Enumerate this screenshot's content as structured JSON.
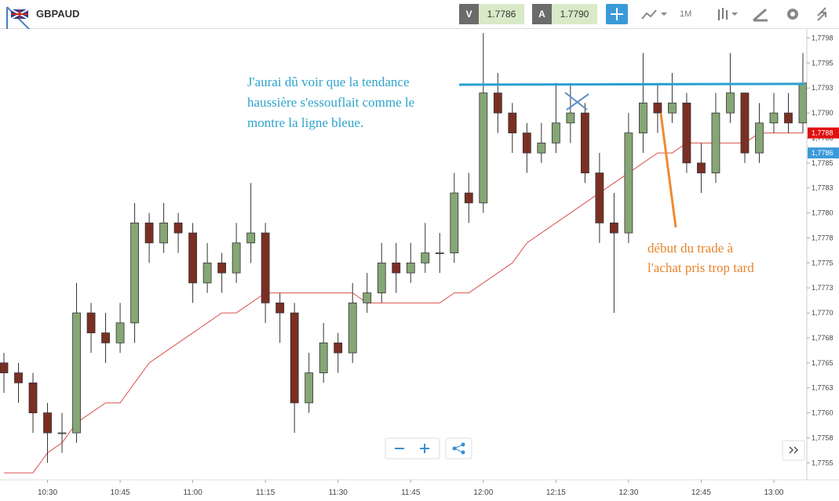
{
  "header": {
    "symbol": "GBPAUD",
    "bid_label": "V",
    "bid": "1.7786",
    "ask_label": "A",
    "ask": "1.7790",
    "timeframe": "1M"
  },
  "chart_data": {
    "type": "candlestick",
    "x": [
      "10:21",
      "10:24",
      "10:27",
      "10:30",
      "10:33",
      "10:36",
      "10:39",
      "10:42",
      "10:45",
      "10:48",
      "10:51",
      "10:54",
      "10:57",
      "11:00",
      "11:03",
      "11:06",
      "11:09",
      "11:12",
      "11:15",
      "11:18",
      "11:21",
      "11:24",
      "11:27",
      "11:30",
      "11:33",
      "11:36",
      "11:39",
      "11:42",
      "11:45",
      "11:48",
      "11:51",
      "11:54",
      "11:57",
      "12:00",
      "12:03",
      "12:06",
      "12:09",
      "12:12",
      "12:15",
      "12:18",
      "12:21",
      "12:24",
      "12:27",
      "12:30",
      "12:33",
      "12:36",
      "12:39",
      "12:42",
      "12:45",
      "12:48",
      "12:51",
      "12:54",
      "12:57",
      "13:00",
      "13:03",
      "13:06"
    ],
    "open": [
      1.7765,
      1.7764,
      1.7763,
      1.776,
      1.7758,
      1.7758,
      1.777,
      1.7768,
      1.7767,
      1.7769,
      1.7779,
      1.7777,
      1.7779,
      1.7778,
      1.7773,
      1.7775,
      1.7774,
      1.7777,
      1.7778,
      1.7771,
      1.777,
      1.7761,
      1.7764,
      1.7767,
      1.7766,
      1.7771,
      1.7772,
      1.7775,
      1.7774,
      1.7775,
      1.7776,
      1.7776,
      1.7782,
      1.7781,
      1.7792,
      1.779,
      1.7788,
      1.7786,
      1.7787,
      1.7789,
      1.779,
      1.7784,
      1.7779,
      1.7778,
      1.7788,
      1.7791,
      1.779,
      1.7791,
      1.7785,
      1.7784,
      1.779,
      1.7792,
      1.7786,
      1.7789,
      1.779,
      1.7789
    ],
    "high": [
      1.7766,
      1.7765,
      1.7764,
      1.7761,
      1.776,
      1.7773,
      1.7771,
      1.777,
      1.7771,
      1.7781,
      1.778,
      1.7781,
      1.778,
      1.7779,
      1.7777,
      1.7776,
      1.7779,
      1.7783,
      1.7779,
      1.7772,
      1.7771,
      1.7766,
      1.7769,
      1.7768,
      1.7773,
      1.7774,
      1.7777,
      1.7777,
      1.7777,
      1.7779,
      1.7778,
      1.7784,
      1.7784,
      1.7798,
      1.7794,
      1.7791,
      1.7789,
      1.7789,
      1.7793,
      1.7793,
      1.7791,
      1.7786,
      1.7782,
      1.779,
      1.7796,
      1.7793,
      1.7794,
      1.7792,
      1.7787,
      1.7792,
      1.7796,
      1.7792,
      1.7791,
      1.7792,
      1.7792,
      1.7796
    ],
    "low": [
      1.7762,
      1.7761,
      1.7758,
      1.7755,
      1.7756,
      1.7757,
      1.7766,
      1.7765,
      1.7766,
      1.7767,
      1.7775,
      1.7776,
      1.7776,
      1.7771,
      1.7772,
      1.7772,
      1.7773,
      1.7775,
      1.7769,
      1.7767,
      1.7758,
      1.776,
      1.7763,
      1.7764,
      1.7765,
      1.777,
      1.7771,
      1.7772,
      1.7773,
      1.7774,
      1.7774,
      1.7775,
      1.7779,
      1.778,
      1.7788,
      1.7786,
      1.7784,
      1.7785,
      1.7786,
      1.7787,
      1.7783,
      1.7777,
      1.777,
      1.7777,
      1.7786,
      1.7788,
      1.7789,
      1.7784,
      1.7782,
      1.7783,
      1.7789,
      1.7785,
      1.7785,
      1.7788,
      1.7788,
      1.7788
    ],
    "close": [
      1.7764,
      1.7763,
      1.776,
      1.7758,
      1.7758,
      1.777,
      1.7768,
      1.7767,
      1.7769,
      1.7779,
      1.7777,
      1.7779,
      1.7778,
      1.7773,
      1.7775,
      1.7774,
      1.7777,
      1.7778,
      1.7771,
      1.777,
      1.7761,
      1.7764,
      1.7767,
      1.7766,
      1.7771,
      1.7772,
      1.7775,
      1.7774,
      1.7775,
      1.7776,
      1.7776,
      1.7782,
      1.7781,
      1.7792,
      1.779,
      1.7788,
      1.7786,
      1.7787,
      1.7789,
      1.779,
      1.7784,
      1.7779,
      1.7778,
      1.7788,
      1.7791,
      1.779,
      1.7791,
      1.7785,
      1.7784,
      1.779,
      1.7792,
      1.7786,
      1.7789,
      1.779,
      1.7789,
      1.7793
    ],
    "up_color": "#86a676",
    "down_color": "#7b2f24",
    "overlays": [
      {
        "color": "#d9534f",
        "values": [
          1.7754,
          1.7754,
          1.7754,
          1.7756,
          1.7757,
          1.7759,
          1.776,
          1.7761,
          1.7761,
          1.7763,
          1.7765,
          1.7766,
          1.7767,
          1.7768,
          1.7769,
          1.777,
          1.777,
          1.7771,
          1.7772,
          1.7772,
          1.7772,
          1.7772,
          1.7772,
          1.7772,
          1.7772,
          1.7771,
          1.7771,
          1.7771,
          1.7771,
          1.7771,
          1.7771,
          1.7772,
          1.7772,
          1.7773,
          1.7774,
          1.7775,
          1.7777,
          1.7778,
          1.7779,
          1.778,
          1.7781,
          1.7782,
          1.7783,
          1.7784,
          1.7785,
          1.7786,
          1.7786,
          1.7787,
          1.7787,
          1.7787,
          1.7787,
          1.7787,
          1.7788,
          1.7788,
          1.7788,
          1.7788
        ]
      }
    ],
    "ylim": [
      1.77533,
      1.77984
    ],
    "yticks": [
      {
        "value": 1.7755,
        "label": "1,7755"
      },
      {
        "value": 1.77575,
        "label": "1,7758"
      },
      {
        "value": 1.776,
        "label": "1,7760"
      },
      {
        "value": 1.77625,
        "label": "1,7763"
      },
      {
        "value": 1.7765,
        "label": "1,7765"
      },
      {
        "value": 1.77675,
        "label": "1,7768"
      },
      {
        "value": 1.777,
        "label": "1,7770"
      },
      {
        "value": 1.77725,
        "label": "1,7773"
      },
      {
        "value": 1.7775,
        "label": "1,7775"
      },
      {
        "value": 1.77775,
        "label": "1,7778"
      },
      {
        "value": 1.778,
        "label": "1,7780"
      },
      {
        "value": 1.77825,
        "label": "1,7783"
      },
      {
        "value": 1.7785,
        "label": "1,7785"
      },
      {
        "value": 1.77875,
        "label": "1,7788"
      },
      {
        "value": 1.779,
        "label": "1,7790"
      },
      {
        "value": 1.77925,
        "label": "1,7793"
      },
      {
        "value": 1.7795,
        "label": "1,7795"
      },
      {
        "value": 1.77975,
        "label": "1,7798"
      }
    ],
    "xticks": [
      "10:30",
      "10:45",
      "11:00",
      "11:15",
      "11:30",
      "11:45",
      "12:00",
      "12:15",
      "12:30",
      "12:45",
      "13:00"
    ],
    "price_tags": [
      {
        "value": 1.7788,
        "label": "1,7788",
        "color": "#e01010"
      },
      {
        "value": 1.7786,
        "label": "1,7786",
        "color": "#3a9ad9"
      }
    ],
    "grid": false,
    "annotations": [
      {
        "color": "#2ea3cc",
        "lines": [
          "J'aurai dû voir que la tendance",
          "haussière s'essouflait comme le",
          "montre la ligne bleue."
        ]
      },
      {
        "color": "#e8842c",
        "lines": [
          "début du trade à",
          "l'achat pris trop tard"
        ]
      }
    ]
  }
}
